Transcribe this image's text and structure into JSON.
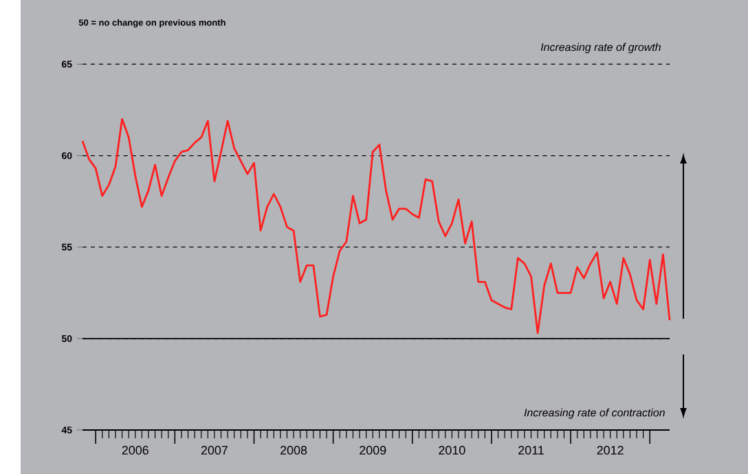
{
  "chart_data": {
    "type": "line",
    "annotations": [
      "50 = no change on previous month",
      "Increasing rate of growth",
      "Increasing rate of contraction"
    ],
    "x": [
      "2005-11",
      "2005-12",
      "2006-01",
      "2006-02",
      "2006-03",
      "2006-04",
      "2006-05",
      "2006-06",
      "2006-07",
      "2006-08",
      "2006-09",
      "2006-10",
      "2006-11",
      "2006-12",
      "2007-01",
      "2007-02",
      "2007-03",
      "2007-04",
      "2007-05",
      "2007-06",
      "2007-07",
      "2007-08",
      "2007-09",
      "2007-10",
      "2007-11",
      "2007-12",
      "2008-01",
      "2008-02",
      "2008-03",
      "2008-04",
      "2008-05",
      "2008-06",
      "2008-07",
      "2008-08",
      "2008-09",
      "2008-10",
      "2008-11",
      "2008-12",
      "2009-01",
      "2009-02",
      "2009-03",
      "2009-04",
      "2009-05",
      "2009-06",
      "2009-07",
      "2009-08",
      "2009-09",
      "2009-10",
      "2009-11",
      "2009-12",
      "2010-01",
      "2010-02",
      "2010-03",
      "2010-04",
      "2010-05",
      "2010-06",
      "2010-07",
      "2010-08",
      "2010-09",
      "2010-10",
      "2010-11",
      "2010-12",
      "2011-01",
      "2011-02",
      "2011-03",
      "2011-04",
      "2011-05",
      "2011-06",
      "2011-07",
      "2011-08",
      "2011-09",
      "2011-10",
      "2011-11",
      "2011-12",
      "2012-01",
      "2012-02",
      "2012-03",
      "2012-04",
      "2012-05",
      "2012-06",
      "2012-07",
      "2012-08",
      "2012-09",
      "2012-10",
      "2012-11",
      "2012-12",
      "2013-01",
      "2013-02",
      "2013-03",
      "2013-04"
    ],
    "series": [
      {
        "color": "#ff2020",
        "values": [
          60.8,
          59.8,
          59.3,
          57.8,
          58.4,
          59.4,
          62.0,
          61.0,
          58.9,
          57.2,
          58.1,
          59.5,
          57.8,
          58.8,
          59.7,
          60.2,
          60.3,
          60.7,
          61.0,
          61.9,
          58.6,
          60.2,
          61.9,
          60.4,
          59.7,
          59.0,
          59.6,
          55.9,
          57.2,
          57.9,
          57.2,
          56.1,
          55.9,
          53.1,
          54.0,
          54.0,
          51.2,
          51.3,
          53.4,
          54.8,
          55.3,
          57.8,
          56.3,
          56.5,
          60.2,
          60.6,
          58.1,
          56.5,
          57.1,
          57.1,
          56.8,
          56.6,
          58.7,
          58.6,
          56.4,
          55.6,
          56.3,
          57.6,
          55.2,
          56.4,
          53.1,
          53.1,
          52.1,
          51.9,
          51.7,
          51.6,
          54.4,
          54.1,
          53.4,
          50.3,
          52.9,
          54.1,
          52.5,
          52.5,
          52.5,
          53.9,
          53.3,
          54.1,
          54.7,
          52.2,
          53.1,
          51.9,
          54.4,
          53.5,
          52.1,
          51.6,
          54.3,
          51.9,
          54.6,
          51.0
        ]
      }
    ],
    "xlim": [
      "2005-11",
      "2013-04"
    ],
    "xticks": [
      {
        "value": "2006-01",
        "label": null
      },
      {
        "value": "2006-07",
        "label": "2006"
      },
      {
        "value": "2007-01",
        "label": null
      },
      {
        "value": "2007-07",
        "label": "2007"
      },
      {
        "value": "2008-01",
        "label": null
      },
      {
        "value": "2008-07",
        "label": "2008"
      },
      {
        "value": "2009-01",
        "label": null
      },
      {
        "value": "2009-07",
        "label": "2009"
      },
      {
        "value": "2010-01",
        "label": null
      },
      {
        "value": "2010-07",
        "label": "2010"
      },
      {
        "value": "2011-01",
        "label": null
      },
      {
        "value": "2011-07",
        "label": "2011"
      },
      {
        "value": "2012-01",
        "label": null
      },
      {
        "value": "2012-07",
        "label": "2012"
      },
      {
        "value": "2013-01",
        "label": null
      }
    ],
    "ylim": [
      45,
      65
    ],
    "yticks": [
      45,
      50,
      55,
      60,
      65
    ],
    "grid": "y",
    "line_style": "solid",
    "marker": "none",
    "ref_lines": [
      {
        "axis": "y",
        "value": 50,
        "color": "#000000",
        "line_style": "solid"
      }
    ]
  }
}
